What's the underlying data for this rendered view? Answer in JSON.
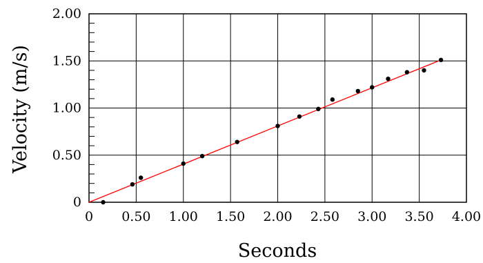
{
  "chart_data": {
    "type": "scatter",
    "title": "",
    "xlabel": "Seconds",
    "ylabel": "Velocity  (m/s)",
    "xlim": [
      0,
      4.0
    ],
    "ylim": [
      0,
      2.0
    ],
    "x_tick_labels": [
      "0",
      "0.50",
      "1.00",
      "1.50",
      "2.00",
      "2.50",
      "3.00",
      "3.50",
      "4.00"
    ],
    "y_tick_labels": [
      "0",
      "0.50",
      "1.00",
      "1.50",
      "2.00"
    ],
    "x_ticks": [
      0,
      0.5,
      1.0,
      1.5,
      2.0,
      2.5,
      3.0,
      3.5,
      4.0
    ],
    "y_ticks": [
      0,
      0.5,
      1.0,
      1.5,
      2.0
    ],
    "grid": true,
    "series": [
      {
        "points": [
          [
            0.15,
            0.0
          ],
          [
            0.46,
            0.19
          ],
          [
            0.55,
            0.26
          ],
          [
            1.0,
            0.41
          ],
          [
            1.2,
            0.49
          ],
          [
            1.57,
            0.64
          ],
          [
            2.0,
            0.81
          ],
          [
            2.23,
            0.91
          ],
          [
            2.43,
            0.99
          ],
          [
            2.58,
            1.09
          ],
          [
            2.85,
            1.18
          ],
          [
            3.0,
            1.22
          ],
          [
            3.17,
            1.31
          ],
          [
            3.37,
            1.38
          ],
          [
            3.55,
            1.4
          ],
          [
            3.73,
            1.51
          ]
        ],
        "color": "#000000"
      }
    ],
    "fit_line": {
      "from": [
        0,
        0
      ],
      "to": [
        3.73,
        1.51
      ],
      "color": "#ff0000"
    }
  }
}
